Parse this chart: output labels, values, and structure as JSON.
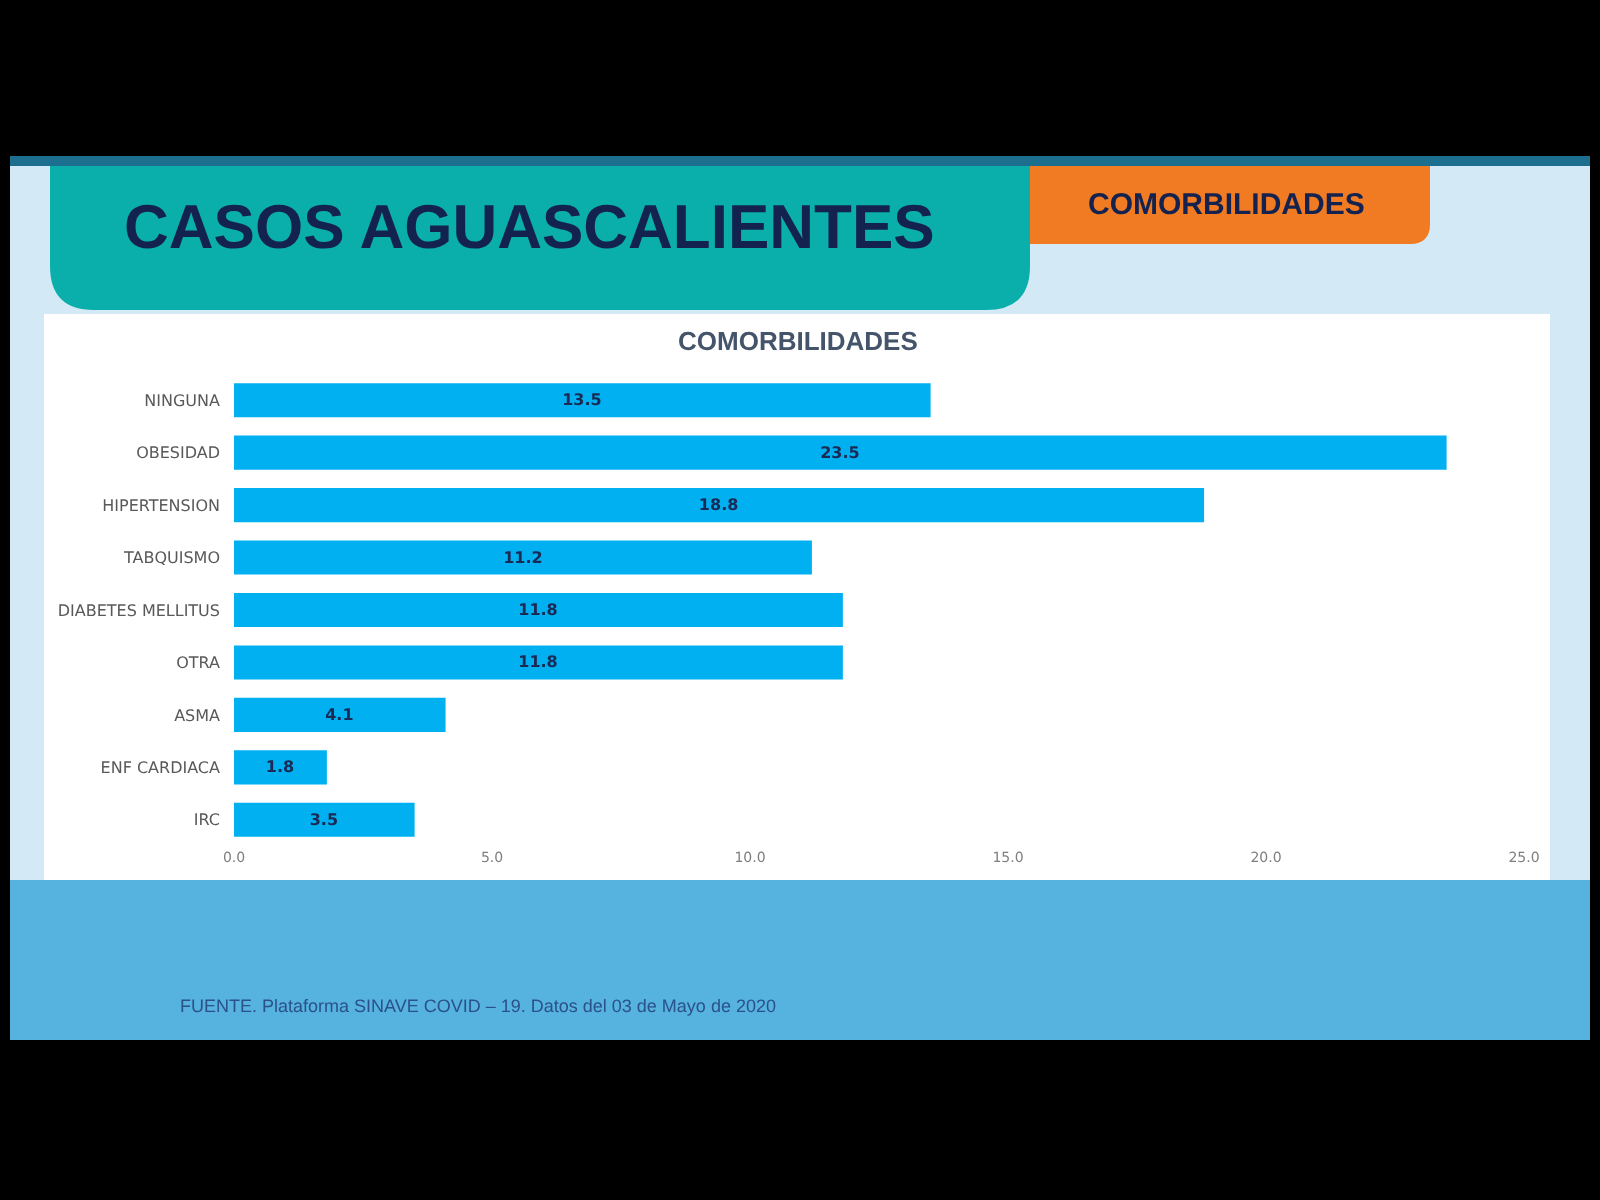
{
  "chart_data": {
    "type": "bar",
    "orientation": "horizontal",
    "title": "CASOS AGUASCALIENTES",
    "subtitle": "COMORBILIDADES",
    "annotations": [
      "COMORBILIDADES",
      "FUENTE. Plataforma SINAVE COVID – 19. Datos del 03 de Mayo de 2020"
    ],
    "categories": [
      "NINGUNA",
      "OBESIDAD",
      "HIPERTENSION",
      "TABQUISMO",
      "DIABETES MELLITUS",
      "OTRA",
      "ASMA",
      "ENF CARDIACA",
      "IRC"
    ],
    "values": [
      13.5,
      23.5,
      18.8,
      11.2,
      11.8,
      11.8,
      4.1,
      1.8,
      3.5
    ],
    "color": "#00b0f0",
    "xlim": [
      0,
      25
    ],
    "xticks": [
      {
        "value": 0,
        "label": "0.0"
      },
      {
        "value": 5,
        "label": "5.0"
      },
      {
        "value": 10,
        "label": "10.0"
      },
      {
        "value": 15,
        "label": "15.0"
      },
      {
        "value": 20,
        "label": "20.0"
      },
      {
        "value": 25,
        "label": "25.0"
      }
    ],
    "data_labels": true
  }
}
